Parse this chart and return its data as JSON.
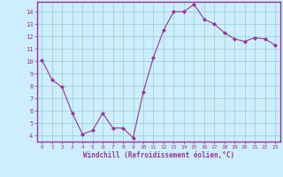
{
  "x": [
    0,
    1,
    2,
    3,
    4,
    5,
    6,
    7,
    8,
    9,
    10,
    11,
    12,
    13,
    14,
    15,
    16,
    17,
    18,
    19,
    20,
    21,
    22,
    23
  ],
  "y": [
    10.1,
    8.5,
    7.9,
    5.8,
    4.1,
    4.4,
    5.8,
    4.6,
    4.6,
    3.8,
    7.5,
    10.3,
    12.5,
    14.0,
    14.0,
    14.6,
    13.4,
    13.0,
    12.3,
    11.8,
    11.6,
    11.9,
    11.8,
    11.3
  ],
  "line_color": "#993399",
  "marker_color": "#993399",
  "bg_color": "#cceeff",
  "grid_color": "#99cccc",
  "xlabel": "Windchill (Refroidissement éolien,°C)",
  "xlabel_color": "#993399",
  "ylim": [
    3.5,
    14.8
  ],
  "xlim": [
    -0.5,
    23.5
  ],
  "yticks": [
    4,
    5,
    6,
    7,
    8,
    9,
    10,
    11,
    12,
    13,
    14
  ],
  "xtick_labels": [
    "0",
    "1",
    "2",
    "3",
    "4",
    "5",
    "6",
    "7",
    "8",
    "9",
    "10",
    "11",
    "12",
    "13",
    "14",
    "15",
    "16",
    "17",
    "18",
    "19",
    "20",
    "21",
    "22",
    "23"
  ],
  "tick_color": "#993399",
  "spine_color": "#993399",
  "font": "monospace"
}
